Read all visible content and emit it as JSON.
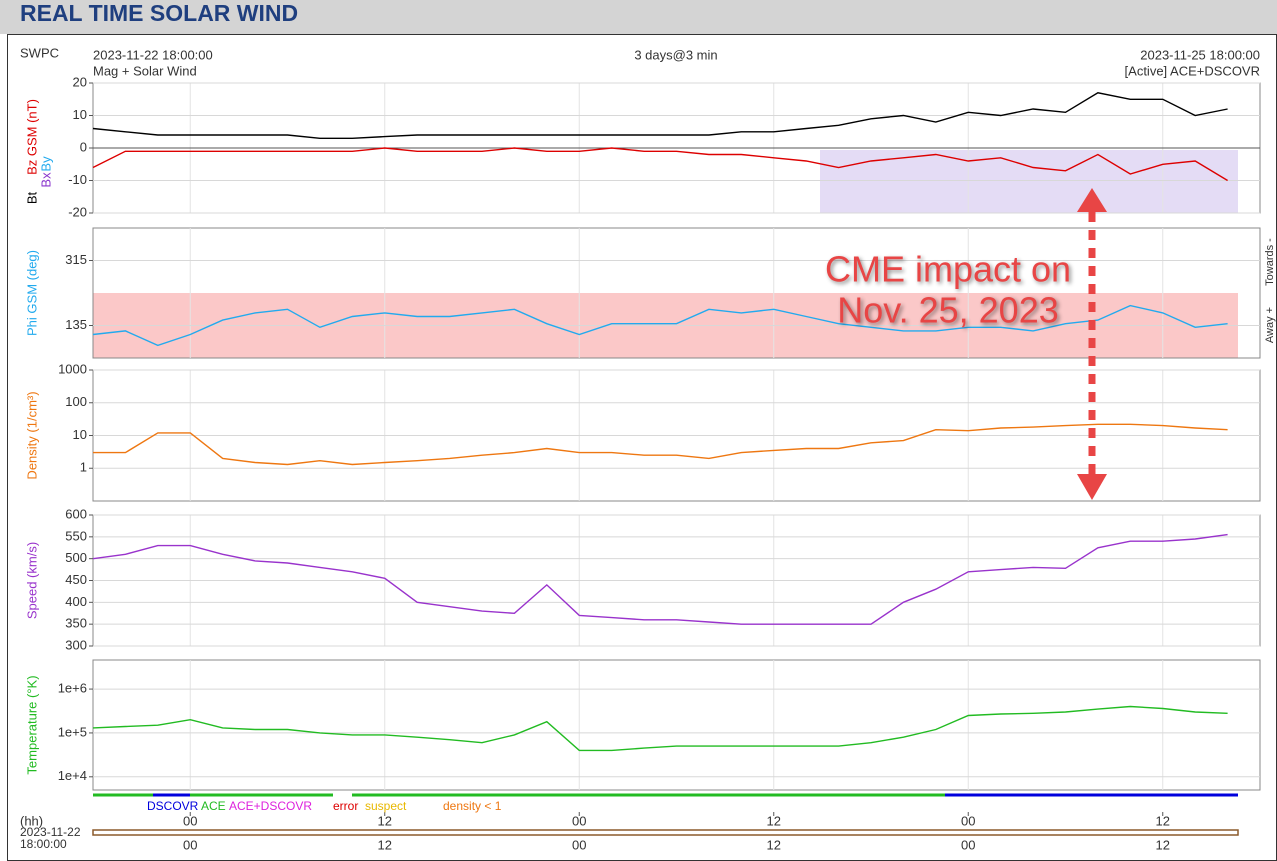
{
  "header": {
    "title": "REAL TIME SOLAR WIND",
    "org": "SWPC",
    "subtitle": "Mag + Solar Wind",
    "span": "3 days@3 min",
    "source": "[Active] ACE+DSCOVR"
  },
  "annotation": [
    "CME impact on",
    "Nov. 25, 2023"
  ],
  "side_labels": [
    "Towards -",
    "Away +"
  ],
  "sources": [
    {
      "name": "DSCOVR",
      "color": "#0000dd"
    },
    {
      "name": "ACE",
      "color": "#22bb22"
    },
    {
      "name": "ACE+DSCOVR",
      "color": "#dd22dd"
    },
    {
      "name": "error",
      "color": "#dd0000"
    },
    {
      "name": "suspect",
      "color": "#e8b800"
    },
    {
      "name": "density < 1",
      "color": "#ee7711"
    }
  ],
  "footer": {
    "hh": "(hh)",
    "date": "2023-11-22",
    "time": "18:00:00"
  },
  "chart_data": [
    {
      "type": "line",
      "xlim": [
        "2023-11-22 18:00:00",
        "2023-11-25 18:00:00"
      ],
      "axis_labels": [
        {
          "text": "Bz GSM (nT)",
          "color": "#dd0000"
        },
        {
          "text": "Bt",
          "color": "#000000"
        },
        {
          "text": "Bx",
          "color": "#8833cc"
        },
        {
          "text": "By",
          "color": "#22aaee"
        }
      ],
      "ylim": [
        -20,
        20
      ],
      "yticks": [
        -20,
        -10,
        0,
        10,
        20
      ],
      "x": [
        "2023-11-22 18:00",
        "2023-11-22 20:00",
        "2023-11-22 22:00",
        "2023-11-23 00:00",
        "2023-11-23 02:00",
        "2023-11-23 04:00",
        "2023-11-23 06:00",
        "2023-11-23 08:00",
        "2023-11-23 10:00",
        "2023-11-23 12:00",
        "2023-11-23 14:00",
        "2023-11-23 16:00",
        "2023-11-23 18:00",
        "2023-11-23 20:00",
        "2023-11-23 22:00",
        "2023-11-24 00:00",
        "2023-11-24 02:00",
        "2023-11-24 04:00",
        "2023-11-24 06:00",
        "2023-11-24 08:00",
        "2023-11-24 10:00",
        "2023-11-24 12:00",
        "2023-11-24 14:00",
        "2023-11-24 16:00",
        "2023-11-24 18:00",
        "2023-11-24 20:00",
        "2023-11-24 22:00",
        "2023-11-25 00:00",
        "2023-11-25 02:00",
        "2023-11-25 04:00",
        "2023-11-25 06:00",
        "2023-11-25 08:00",
        "2023-11-25 10:00",
        "2023-11-25 12:00",
        "2023-11-25 14:00",
        "2023-11-25 16:00"
      ],
      "series": [
        {
          "name": "Bt",
          "color": "#000000",
          "values": [
            6,
            5,
            4,
            4,
            4,
            4,
            4,
            3,
            3,
            3.5,
            4,
            4,
            4,
            4,
            4,
            4,
            4,
            4,
            4,
            4,
            5,
            5,
            6,
            7,
            9,
            10,
            8,
            11,
            10,
            12,
            11,
            17,
            15,
            15,
            10,
            12
          ]
        },
        {
          "name": "Bz",
          "color": "#dd0000",
          "values": [
            -6,
            -1,
            -1,
            -1,
            -1,
            -1,
            -1,
            -1,
            -1,
            0,
            -1,
            -1,
            -1,
            0,
            -1,
            -1,
            0,
            -1,
            -1,
            -2,
            -2,
            -3,
            -4,
            -6,
            -4,
            -3,
            -2,
            -4,
            -3,
            -6,
            -7,
            -2,
            -8,
            -5,
            -4,
            -10
          ]
        }
      ]
    },
    {
      "type": "line",
      "ylabel": "Phi GSM (deg)",
      "ylabel_color": "#22aaee",
      "ylim": [
        45,
        405
      ],
      "yticks": [
        135,
        315
      ],
      "x": [
        "2023-11-22 18:00",
        "2023-11-22 20:00",
        "2023-11-22 22:00",
        "2023-11-23 00:00",
        "2023-11-23 02:00",
        "2023-11-23 04:00",
        "2023-11-23 06:00",
        "2023-11-23 08:00",
        "2023-11-23 10:00",
        "2023-11-23 12:00",
        "2023-11-23 14:00",
        "2023-11-23 16:00",
        "2023-11-23 18:00",
        "2023-11-23 20:00",
        "2023-11-23 22:00",
        "2023-11-24 00:00",
        "2023-11-24 02:00",
        "2023-11-24 04:00",
        "2023-11-24 06:00",
        "2023-11-24 08:00",
        "2023-11-24 10:00",
        "2023-11-24 12:00",
        "2023-11-24 14:00",
        "2023-11-24 16:00",
        "2023-11-24 18:00",
        "2023-11-24 20:00",
        "2023-11-24 22:00",
        "2023-11-25 00:00",
        "2023-11-25 02:00",
        "2023-11-25 04:00",
        "2023-11-25 06:00",
        "2023-11-25 08:00",
        "2023-11-25 10:00",
        "2023-11-25 12:00",
        "2023-11-25 14:00",
        "2023-11-25 16:00"
      ],
      "series": [
        {
          "name": "Phi",
          "color": "#22aaee",
          "values": [
            110,
            120,
            80,
            110,
            150,
            170,
            180,
            130,
            160,
            170,
            160,
            160,
            170,
            180,
            140,
            110,
            140,
            140,
            140,
            180,
            170,
            180,
            160,
            140,
            130,
            120,
            120,
            130,
            130,
            120,
            140,
            150,
            190,
            170,
            130,
            140
          ]
        }
      ]
    },
    {
      "type": "line",
      "ylabel": "Density (1/cm³)",
      "ylabel_color": "#ee7711",
      "log": true,
      "ylim": [
        0.1,
        1000
      ],
      "yticks": [
        1,
        10,
        100,
        1000
      ],
      "x": [
        "2023-11-22 18:00",
        "2023-11-22 20:00",
        "2023-11-22 22:00",
        "2023-11-23 00:00",
        "2023-11-23 02:00",
        "2023-11-23 04:00",
        "2023-11-23 06:00",
        "2023-11-23 08:00",
        "2023-11-23 10:00",
        "2023-11-23 12:00",
        "2023-11-23 14:00",
        "2023-11-23 16:00",
        "2023-11-23 18:00",
        "2023-11-23 20:00",
        "2023-11-23 22:00",
        "2023-11-24 00:00",
        "2023-11-24 02:00",
        "2023-11-24 04:00",
        "2023-11-24 06:00",
        "2023-11-24 08:00",
        "2023-11-24 10:00",
        "2023-11-24 12:00",
        "2023-11-24 14:00",
        "2023-11-24 16:00",
        "2023-11-24 18:00",
        "2023-11-24 20:00",
        "2023-11-24 22:00",
        "2023-11-25 00:00",
        "2023-11-25 02:00",
        "2023-11-25 04:00",
        "2023-11-25 06:00",
        "2023-11-25 08:00",
        "2023-11-25 10:00",
        "2023-11-25 12:00",
        "2023-11-25 14:00",
        "2023-11-25 16:00"
      ],
      "series": [
        {
          "name": "Density",
          "color": "#ee7711",
          "values": [
            3,
            3,
            12,
            12,
            2,
            1.5,
            1.3,
            1.7,
            1.3,
            1.5,
            1.7,
            2,
            2.5,
            3,
            4,
            3,
            3,
            2.5,
            2.5,
            2,
            3,
            3.5,
            4,
            4,
            6,
            7,
            15,
            14,
            17,
            18,
            20,
            22,
            22,
            20,
            17,
            15
          ]
        }
      ]
    },
    {
      "type": "line",
      "ylabel": "Speed (km/s)",
      "ylabel_color": "#9933cc",
      "ylim": [
        300,
        600
      ],
      "yticks": [
        300,
        350,
        400,
        450,
        500,
        550,
        600
      ],
      "x": [
        "2023-11-22 18:00",
        "2023-11-22 20:00",
        "2023-11-22 22:00",
        "2023-11-23 00:00",
        "2023-11-23 02:00",
        "2023-11-23 04:00",
        "2023-11-23 06:00",
        "2023-11-23 08:00",
        "2023-11-23 10:00",
        "2023-11-23 12:00",
        "2023-11-23 14:00",
        "2023-11-23 16:00",
        "2023-11-23 18:00",
        "2023-11-23 20:00",
        "2023-11-23 22:00",
        "2023-11-24 00:00",
        "2023-11-24 02:00",
        "2023-11-24 04:00",
        "2023-11-24 06:00",
        "2023-11-24 08:00",
        "2023-11-24 10:00",
        "2023-11-24 12:00",
        "2023-11-24 14:00",
        "2023-11-24 16:00",
        "2023-11-24 18:00",
        "2023-11-24 20:00",
        "2023-11-24 22:00",
        "2023-11-25 00:00",
        "2023-11-25 02:00",
        "2023-11-25 04:00",
        "2023-11-25 06:00",
        "2023-11-25 08:00",
        "2023-11-25 10:00",
        "2023-11-25 12:00",
        "2023-11-25 14:00",
        "2023-11-25 16:00"
      ],
      "series": [
        {
          "name": "Speed",
          "color": "#9933cc",
          "values": [
            500,
            510,
            530,
            530,
            510,
            495,
            490,
            480,
            470,
            455,
            400,
            390,
            380,
            375,
            440,
            370,
            365,
            360,
            360,
            355,
            350,
            350,
            350,
            350,
            350,
            400,
            430,
            470,
            475,
            480,
            478,
            525,
            540,
            540,
            545,
            555
          ]
        }
      ]
    },
    {
      "type": "line",
      "ylabel": "Temperature (°K)",
      "ylabel_color": "#22bb22",
      "log": true,
      "ylim": [
        5000,
        4600000
      ],
      "yticks": [
        {
          "value": 10000,
          "label": "1e+4"
        },
        {
          "value": 100000,
          "label": "1e+5"
        },
        {
          "value": 1000000,
          "label": "1e+6"
        }
      ],
      "xticks": [
        {
          "value": "2023-11-23 00:00",
          "label": "00"
        },
        {
          "value": "2023-11-23 12:00",
          "label": "12"
        },
        {
          "value": "2023-11-24 00:00",
          "label": "00"
        },
        {
          "value": "2023-11-24 12:00",
          "label": "12"
        },
        {
          "value": "2023-11-25 00:00",
          "label": "00"
        },
        {
          "value": "2023-11-25 12:00",
          "label": "12"
        }
      ],
      "x": [
        "2023-11-22 18:00",
        "2023-11-22 20:00",
        "2023-11-22 22:00",
        "2023-11-23 00:00",
        "2023-11-23 02:00",
        "2023-11-23 04:00",
        "2023-11-23 06:00",
        "2023-11-23 08:00",
        "2023-11-23 10:00",
        "2023-11-23 12:00",
        "2023-11-23 14:00",
        "2023-11-23 16:00",
        "2023-11-23 18:00",
        "2023-11-23 20:00",
        "2023-11-23 22:00",
        "2023-11-24 00:00",
        "2023-11-24 02:00",
        "2023-11-24 04:00",
        "2023-11-24 06:00",
        "2023-11-24 08:00",
        "2023-11-24 10:00",
        "2023-11-24 12:00",
        "2023-11-24 14:00",
        "2023-11-24 16:00",
        "2023-11-24 18:00",
        "2023-11-24 20:00",
        "2023-11-24 22:00",
        "2023-11-25 00:00",
        "2023-11-25 02:00",
        "2023-11-25 04:00",
        "2023-11-25 06:00",
        "2023-11-25 08:00",
        "2023-11-25 10:00",
        "2023-11-25 12:00",
        "2023-11-25 14:00",
        "2023-11-25 16:00"
      ],
      "series": [
        {
          "name": "Temperature",
          "color": "#22bb22",
          "values": [
            130000,
            140000,
            150000,
            200000,
            130000,
            120000,
            120000,
            100000,
            90000,
            90000,
            80000,
            70000,
            60000,
            90000,
            180000,
            40000,
            40000,
            45000,
            50000,
            50000,
            50000,
            50000,
            50000,
            50000,
            60000,
            80000,
            120000,
            250000,
            270000,
            280000,
            300000,
            350000,
            400000,
            360000,
            300000,
            280000
          ]
        }
      ]
    }
  ]
}
